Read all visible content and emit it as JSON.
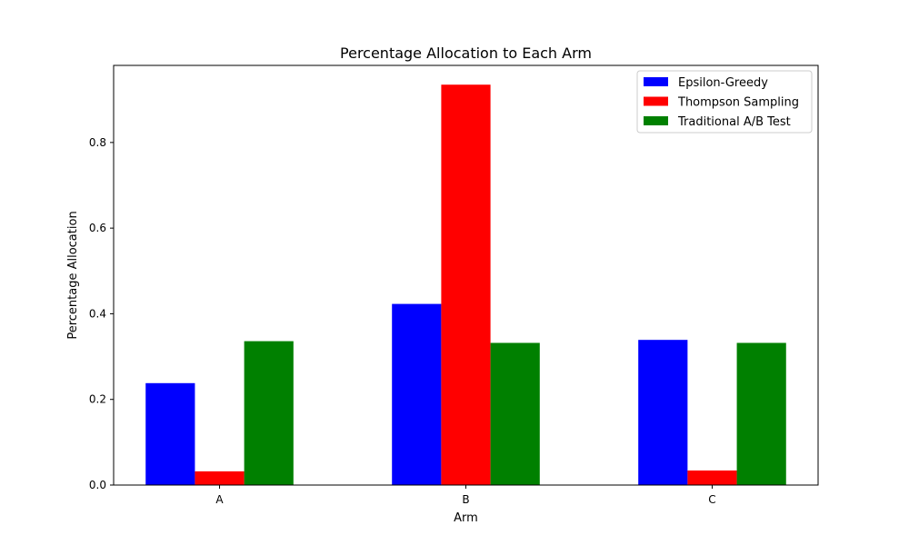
{
  "chart_data": {
    "type": "bar",
    "title": "Percentage Allocation to Each Arm",
    "xlabel": "Arm",
    "ylabel": "Percentage Allocation",
    "categories": [
      "A",
      "B",
      "C"
    ],
    "series": [
      {
        "name": "Epsilon-Greedy",
        "color": "#0000ff",
        "values": [
          0.238,
          0.423,
          0.339
        ]
      },
      {
        "name": "Thompson Sampling",
        "color": "#ff0000",
        "values": [
          0.032,
          0.935,
          0.034
        ]
      },
      {
        "name": "Traditional A/B Test",
        "color": "#008000",
        "values": [
          0.336,
          0.332,
          0.332
        ]
      }
    ],
    "ylim": [
      0,
      0.98
    ],
    "yticks": [
      0.0,
      0.2,
      0.4,
      0.6,
      0.8
    ],
    "ytick_labels": [
      "0.0",
      "0.2",
      "0.4",
      "0.6",
      "0.8"
    ],
    "grid": false,
    "legend_position": "top-right"
  }
}
